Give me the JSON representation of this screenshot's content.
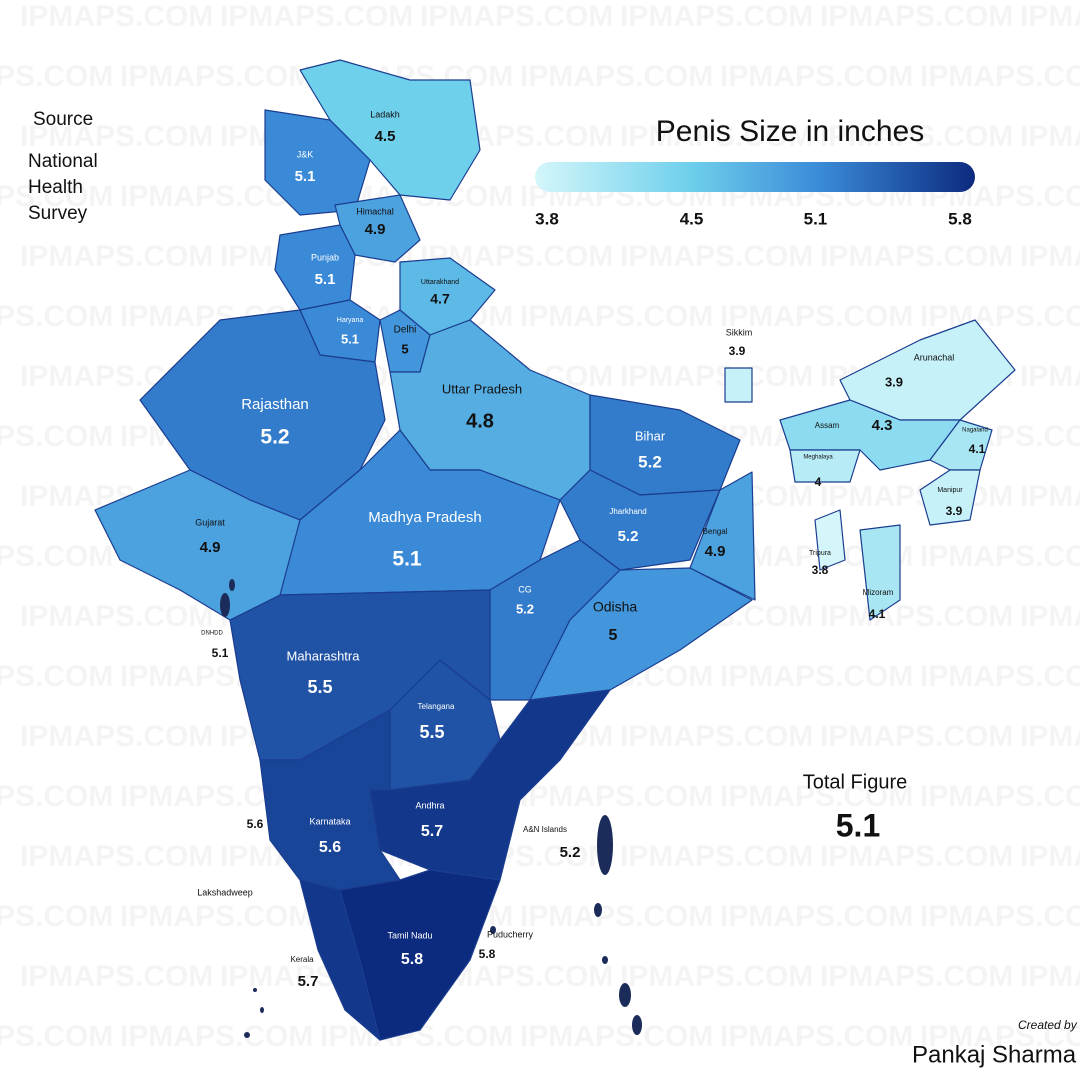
{
  "title": "Penis Size in inches",
  "source": [
    "Source",
    "National",
    "Health",
    "Survey"
  ],
  "legend": {
    "ticks": [
      3.8,
      4.5,
      5.1,
      5.8
    ],
    "colors": [
      "#d4f6fa",
      "#6fd0ec",
      "#3a8ad8",
      "#0c2a7e"
    ]
  },
  "regions": [
    {
      "name": "Ladakh",
      "value": 4.5
    },
    {
      "name": "J&K",
      "value": 5.1
    },
    {
      "name": "Himachal",
      "value": 4.9
    },
    {
      "name": "Uttarakhand",
      "value": 4.7
    },
    {
      "name": "Punjab",
      "value": 5.1
    },
    {
      "name": "Haryana",
      "value": 5.1
    },
    {
      "name": "Delhi",
      "value": 5
    },
    {
      "name": "Rajasthan",
      "value": 5.2
    },
    {
      "name": "Uttar Pradesh",
      "value": 4.8
    },
    {
      "name": "Gujarat",
      "value": 4.9
    },
    {
      "name": "Madhya Pradesh",
      "value": 5.1
    },
    {
      "name": "Bihar",
      "value": 5.2
    },
    {
      "name": "Jharkhand",
      "value": 5.2
    },
    {
      "name": "Bengal",
      "value": 4.9
    },
    {
      "name": "CG",
      "value": 5.2
    },
    {
      "name": "Odisha",
      "value": 5
    },
    {
      "name": "Maharashtra",
      "value": 5.5
    },
    {
      "name": "Telangana",
      "value": 5.5
    },
    {
      "name": "Andhra",
      "value": 5.7
    },
    {
      "name": "Karnataka",
      "value": 5.6
    },
    {
      "name": "Kerala",
      "value": 5.7
    },
    {
      "name": "Tamil Nadu",
      "value": 5.8
    },
    {
      "name": "Arunachal",
      "value": 3.9
    },
    {
      "name": "Assam",
      "value": 4.3
    },
    {
      "name": "Sikkim",
      "value": 3.9
    },
    {
      "name": "Meghalaya",
      "value": 4
    },
    {
      "name": "Nagaland",
      "value": 4.1
    },
    {
      "name": "Manipur",
      "value": 3.9
    },
    {
      "name": "Tripura",
      "value": 3.8
    },
    {
      "name": "Mizoram",
      "value": 4.1
    },
    {
      "name": "DNHDD",
      "value": 5.1
    },
    {
      "name": "Lakshadweep",
      "value": 5.6
    },
    {
      "name": "A&N Islands",
      "value": 5.2
    },
    {
      "name": "Puducherry",
      "value": 5.8
    }
  ],
  "total": {
    "label": "Total Figure",
    "value": 5.1
  },
  "credit": {
    "note": "Created by",
    "author": "Pankaj Sharma"
  },
  "watermark": "IPMAPS.COM"
}
